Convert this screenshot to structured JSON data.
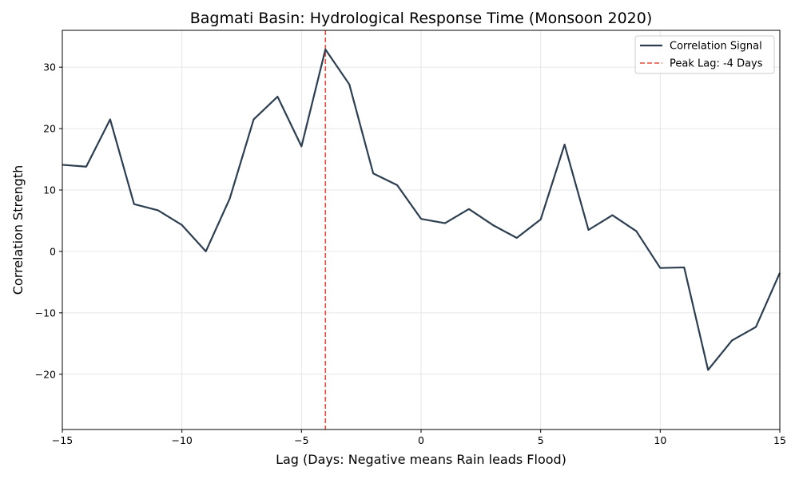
{
  "chart_data": {
    "type": "line",
    "title": "Bagmati Basin: Hydrological Response Time (Monsoon 2020)",
    "xlabel": "Lag (Days: Negative means Rain leads Flood)",
    "ylabel": "Correlation Strength",
    "xlim": [
      -15,
      15
    ],
    "ylim": [
      -29,
      36
    ],
    "xticks": [
      -15,
      -10,
      -5,
      0,
      5,
      10,
      15
    ],
    "xtick_labels": [
      "−15",
      "−10",
      "−5",
      "0",
      "5",
      "10",
      "15"
    ],
    "yticks": [
      -20,
      -10,
      0,
      10,
      20,
      30
    ],
    "ytick_labels": [
      "−20",
      "−10",
      "0",
      "10",
      "20",
      "30"
    ],
    "grid": true,
    "legend_position": "top-right",
    "series": [
      {
        "name": "Correlation Signal",
        "color": "#2c3e50",
        "style": "solid",
        "x": [
          -15,
          -14,
          -13,
          -12,
          -11,
          -10,
          -9,
          -8,
          -7,
          -6,
          -5,
          -4,
          -3,
          -2,
          -1,
          0,
          1,
          2,
          3,
          4,
          5,
          6,
          7,
          8,
          9,
          10,
          11,
          12,
          13,
          14,
          15
        ],
        "y": [
          14.1,
          13.8,
          21.5,
          7.7,
          6.7,
          4.3,
          0.0,
          8.6,
          21.5,
          25.2,
          17.1,
          32.9,
          27.2,
          12.7,
          10.8,
          5.3,
          4.6,
          6.9,
          4.3,
          2.2,
          5.2,
          17.4,
          3.5,
          5.9,
          3.3,
          -2.7,
          -2.6,
          -19.3,
          -14.5,
          -12.3,
          -3.5
        ]
      }
    ],
    "reference_lines": [
      {
        "name": "Peak Lag: -4 Days",
        "orientation": "vertical",
        "x": -4,
        "color": "#e74c3c",
        "style": "dashed"
      }
    ]
  }
}
